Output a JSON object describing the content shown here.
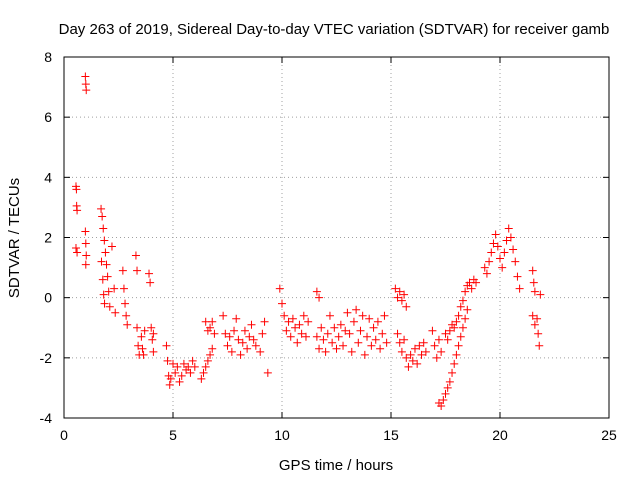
{
  "chart_data": {
    "type": "scatter",
    "title": "Day 263 of 2019, Sidereal Day-to-day VTEC variation (SDTVAR) for receiver gamb",
    "xlabel": "GPS time / hours",
    "ylabel": "SDTVAR / TECUs",
    "xlim": [
      0,
      25
    ],
    "ylim": [
      -4,
      8
    ],
    "xticks": [
      0,
      5,
      10,
      15,
      20,
      25
    ],
    "yticks": [
      -4,
      -2,
      0,
      2,
      4,
      6,
      8
    ],
    "xtick_labels": [
      "0",
      "5",
      "10",
      "15",
      "20",
      "25"
    ],
    "ytick_labels": [
      "-4",
      "-2",
      "0",
      "2",
      "4",
      "6",
      "8"
    ],
    "grid": true,
    "marker": "+",
    "series_color": "#ff0000",
    "series": [
      {
        "name": "SDTVAR",
        "points": [
          [
            0.55,
            3.7
          ],
          [
            0.57,
            3.6
          ],
          [
            0.58,
            3.05
          ],
          [
            0.6,
            2.9
          ],
          [
            0.55,
            1.65
          ],
          [
            0.6,
            1.5
          ],
          [
            0.98,
            7.35
          ],
          [
            1.0,
            7.1
          ],
          [
            1.02,
            6.9
          ],
          [
            0.98,
            2.2
          ],
          [
            1.0,
            1.8
          ],
          [
            1.02,
            1.4
          ],
          [
            1.0,
            1.1
          ],
          [
            1.7,
            2.95
          ],
          [
            1.75,
            2.7
          ],
          [
            1.8,
            2.3
          ],
          [
            1.85,
            1.9
          ],
          [
            1.9,
            1.5
          ],
          [
            1.95,
            1.1
          ],
          [
            2.0,
            0.7
          ],
          [
            1.72,
            1.2
          ],
          [
            1.78,
            0.6
          ],
          [
            1.82,
            0.1
          ],
          [
            1.86,
            -0.2
          ],
          [
            2.05,
            0.2
          ],
          [
            2.1,
            -0.3
          ],
          [
            2.2,
            1.7
          ],
          [
            2.3,
            0.3
          ],
          [
            2.35,
            -0.5
          ],
          [
            2.7,
            0.9
          ],
          [
            2.75,
            0.3
          ],
          [
            2.8,
            -0.2
          ],
          [
            2.85,
            -0.6
          ],
          [
            2.9,
            -0.9
          ],
          [
            3.3,
            1.4
          ],
          [
            3.35,
            0.9
          ],
          [
            3.35,
            -1.0
          ],
          [
            3.4,
            -1.6
          ],
          [
            3.45,
            -1.9
          ],
          [
            3.55,
            -1.3
          ],
          [
            3.6,
            -1.7
          ],
          [
            3.65,
            -1.9
          ],
          [
            3.7,
            -1.1
          ],
          [
            3.9,
            0.8
          ],
          [
            3.95,
            0.5
          ],
          [
            4.0,
            -1.0
          ],
          [
            4.05,
            -1.4
          ],
          [
            4.1,
            -1.8
          ],
          [
            4.1,
            -1.2
          ],
          [
            4.7,
            -1.6
          ],
          [
            4.75,
            -2.1
          ],
          [
            4.8,
            -2.6
          ],
          [
            4.85,
            -2.9
          ],
          [
            4.9,
            -2.7
          ],
          [
            5.0,
            -2.2
          ],
          [
            5.1,
            -2.5
          ],
          [
            5.2,
            -2.3
          ],
          [
            5.3,
            -2.8
          ],
          [
            5.4,
            -2.6
          ],
          [
            5.5,
            -2.2
          ],
          [
            5.6,
            -2.4
          ],
          [
            5.7,
            -2.3
          ],
          [
            5.8,
            -2.5
          ],
          [
            5.9,
            -2.1
          ],
          [
            6.0,
            -2.3
          ],
          [
            6.3,
            -2.7
          ],
          [
            6.4,
            -2.5
          ],
          [
            6.5,
            -2.3
          ],
          [
            6.6,
            -2.1
          ],
          [
            6.7,
            -1.9
          ],
          [
            6.8,
            -1.7
          ],
          [
            6.5,
            -0.8
          ],
          [
            6.6,
            -1.1
          ],
          [
            6.7,
            -1.0
          ],
          [
            6.8,
            -0.8
          ],
          [
            6.9,
            -1.2
          ],
          [
            7.3,
            -0.6
          ],
          [
            7.4,
            -1.2
          ],
          [
            7.5,
            -1.6
          ],
          [
            7.6,
            -1.3
          ],
          [
            7.7,
            -1.8
          ],
          [
            7.8,
            -1.1
          ],
          [
            7.9,
            -0.7
          ],
          [
            8.0,
            -1.4
          ],
          [
            8.1,
            -1.9
          ],
          [
            8.2,
            -1.5
          ],
          [
            8.3,
            -1.1
          ],
          [
            8.4,
            -1.7
          ],
          [
            8.5,
            -1.3
          ],
          [
            8.6,
            -0.9
          ],
          [
            8.7,
            -1.4
          ],
          [
            8.8,
            -1.6
          ],
          [
            9.0,
            -1.8
          ],
          [
            9.1,
            -1.2
          ],
          [
            9.2,
            -0.8
          ],
          [
            9.35,
            -2.5
          ],
          [
            9.9,
            0.3
          ],
          [
            10.0,
            -0.2
          ],
          [
            10.1,
            -0.6
          ],
          [
            10.2,
            -1.1
          ],
          [
            10.3,
            -0.8
          ],
          [
            10.4,
            -1.3
          ],
          [
            10.5,
            -0.7
          ],
          [
            10.6,
            -1.0
          ],
          [
            10.7,
            -1.5
          ],
          [
            10.8,
            -0.9
          ],
          [
            10.9,
            -1.2
          ],
          [
            11.0,
            -0.6
          ],
          [
            11.1,
            -1.3
          ],
          [
            11.2,
            -0.8
          ],
          [
            11.6,
            0.2
          ],
          [
            11.7,
            0.0
          ],
          [
            11.6,
            -1.3
          ],
          [
            11.7,
            -1.7
          ],
          [
            11.8,
            -1.0
          ],
          [
            11.9,
            -1.4
          ],
          [
            12.0,
            -1.8
          ],
          [
            12.1,
            -1.2
          ],
          [
            12.2,
            -0.6
          ],
          [
            12.3,
            -1.5
          ],
          [
            12.4,
            -1.0
          ],
          [
            12.5,
            -1.7
          ],
          [
            12.6,
            -1.3
          ],
          [
            12.7,
            -0.9
          ],
          [
            12.8,
            -1.6
          ],
          [
            12.9,
            -1.1
          ],
          [
            13.0,
            -0.5
          ],
          [
            13.1,
            -1.2
          ],
          [
            13.2,
            -1.8
          ],
          [
            13.3,
            -0.8
          ],
          [
            13.4,
            -0.4
          ],
          [
            13.5,
            -1.5
          ],
          [
            13.6,
            -1.1
          ],
          [
            13.7,
            -0.6
          ],
          [
            13.8,
            -1.9
          ],
          [
            13.9,
            -1.3
          ],
          [
            14.0,
            -0.7
          ],
          [
            14.1,
            -1.6
          ],
          [
            14.2,
            -1.0
          ],
          [
            14.3,
            -1.4
          ],
          [
            14.4,
            -0.8
          ],
          [
            14.5,
            -1.7
          ],
          [
            14.6,
            -1.2
          ],
          [
            14.7,
            -0.6
          ],
          [
            14.8,
            -1.5
          ],
          [
            15.2,
            0.3
          ],
          [
            15.3,
            0.0
          ],
          [
            15.4,
            0.2
          ],
          [
            15.5,
            -0.1
          ],
          [
            15.6,
            0.1
          ],
          [
            15.7,
            -0.3
          ],
          [
            15.3,
            -1.2
          ],
          [
            15.4,
            -1.5
          ],
          [
            15.5,
            -1.8
          ],
          [
            15.6,
            -1.4
          ],
          [
            15.7,
            -2.0
          ],
          [
            15.8,
            -2.3
          ],
          [
            15.9,
            -1.9
          ],
          [
            16.0,
            -2.1
          ],
          [
            16.1,
            -1.7
          ],
          [
            16.2,
            -2.2
          ],
          [
            16.3,
            -1.6
          ],
          [
            16.4,
            -1.9
          ],
          [
            16.5,
            -1.5
          ],
          [
            16.6,
            -1.8
          ],
          [
            16.9,
            -1.1
          ],
          [
            17.0,
            -1.6
          ],
          [
            17.1,
            -2.0
          ],
          [
            17.2,
            -1.4
          ],
          [
            17.3,
            -1.8
          ],
          [
            17.2,
            -3.5
          ],
          [
            17.3,
            -3.6
          ],
          [
            17.4,
            -3.4
          ],
          [
            17.5,
            -3.2
          ],
          [
            17.6,
            -3.0
          ],
          [
            17.7,
            -2.8
          ],
          [
            17.8,
            -2.5
          ],
          [
            17.9,
            -2.2
          ],
          [
            18.0,
            -1.9
          ],
          [
            18.1,
            -1.6
          ],
          [
            18.2,
            -1.3
          ],
          [
            18.3,
            -1.0
          ],
          [
            18.4,
            -0.7
          ],
          [
            18.5,
            -0.4
          ],
          [
            17.5,
            -1.2
          ],
          [
            17.6,
            -1.4
          ],
          [
            17.7,
            -1.1
          ],
          [
            17.8,
            -0.9
          ],
          [
            17.9,
            -1.0
          ],
          [
            18.0,
            -0.8
          ],
          [
            18.1,
            -0.6
          ],
          [
            18.2,
            -0.3
          ],
          [
            18.3,
            -0.1
          ],
          [
            18.4,
            0.2
          ],
          [
            18.5,
            0.4
          ],
          [
            18.6,
            0.5
          ],
          [
            18.7,
            0.3
          ],
          [
            18.8,
            0.6
          ],
          [
            18.9,
            0.5
          ],
          [
            19.3,
            1.0
          ],
          [
            19.4,
            0.8
          ],
          [
            19.5,
            1.2
          ],
          [
            19.6,
            1.5
          ],
          [
            19.7,
            1.8
          ],
          [
            19.8,
            2.1
          ],
          [
            19.9,
            1.7
          ],
          [
            20.0,
            1.3
          ],
          [
            20.1,
            1.0
          ],
          [
            20.2,
            1.5
          ],
          [
            20.3,
            1.9
          ],
          [
            20.4,
            2.3
          ],
          [
            20.5,
            2.0
          ],
          [
            20.6,
            1.6
          ],
          [
            20.7,
            1.2
          ],
          [
            20.8,
            0.7
          ],
          [
            20.9,
            0.3
          ],
          [
            21.5,
            0.9
          ],
          [
            21.55,
            0.5
          ],
          [
            21.6,
            0.2
          ],
          [
            21.5,
            -0.6
          ],
          [
            21.6,
            -0.9
          ],
          [
            21.7,
            -0.7
          ],
          [
            21.75,
            -1.2
          ],
          [
            21.8,
            -1.6
          ],
          [
            21.85,
            0.1
          ]
        ]
      }
    ]
  }
}
